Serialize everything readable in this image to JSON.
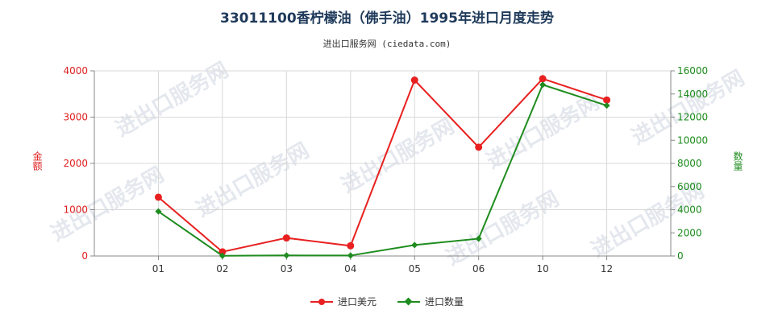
{
  "chart_data": {
    "type": "line",
    "title": "33011100香柠檬油（佛手油）1995年进口月度走势",
    "subtitle": "进出口服务网 (ciedata.com)",
    "categories": [
      "01",
      "02",
      "03",
      "04",
      "05",
      "06",
      "10",
      "12"
    ],
    "y_left": {
      "label": "金额",
      "ylim": [
        0,
        4000
      ],
      "ticks": [
        "0",
        "1000",
        "2000",
        "3000",
        "4000"
      ]
    },
    "y_right": {
      "label": "数量",
      "ylim": [
        0,
        16000
      ],
      "ticks": [
        "0",
        "2000",
        "4000",
        "6000",
        "8000",
        "10000",
        "12000",
        "14000",
        "16000"
      ]
    },
    "series": [
      {
        "name": "进口美元",
        "axis": "left",
        "color": "#e82020",
        "marker": "circle",
        "values": [
          1270,
          90,
          390,
          220,
          3800,
          2350,
          3830,
          3370
        ]
      },
      {
        "name": "进口数量",
        "axis": "right",
        "color": "#1e8c1e",
        "marker": "diamond",
        "values": [
          3850,
          20,
          50,
          40,
          950,
          1500,
          14800,
          13000
        ]
      }
    ],
    "grid": true,
    "legend_position": "bottom",
    "watermark": "进出口服务网"
  }
}
